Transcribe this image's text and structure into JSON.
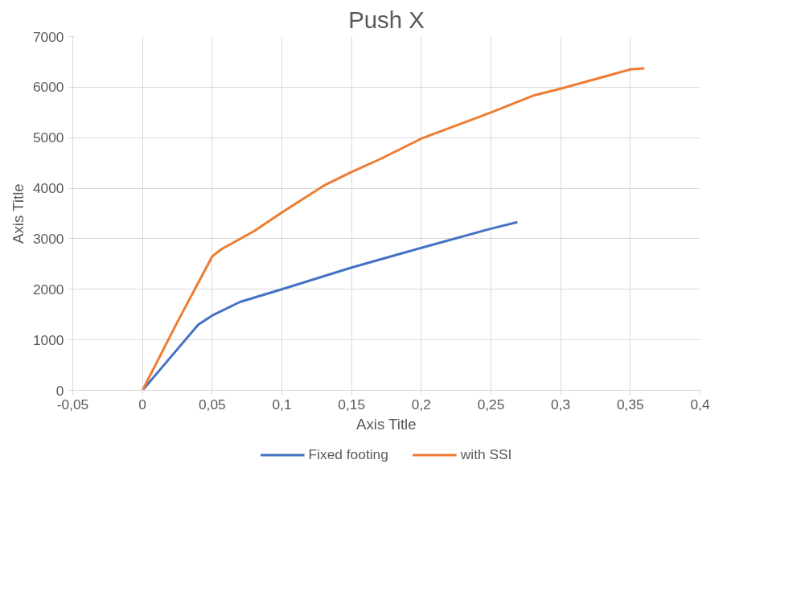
{
  "chart_data": {
    "type": "line",
    "title": "Push X",
    "xlabel": "Axis Title",
    "ylabel": "Axis Title",
    "xlim": [
      -0.05,
      0.4
    ],
    "ylim": [
      0,
      7000
    ],
    "xticks": [
      {
        "value": -0.05,
        "label": "-0,05"
      },
      0,
      {
        "value": 0.05,
        "label": "0,05"
      },
      {
        "value": 0.1,
        "label": "0,1"
      },
      {
        "value": 0.15,
        "label": "0,15"
      },
      {
        "value": 0.2,
        "label": "0,2"
      },
      {
        "value": 0.25,
        "label": "0,25"
      },
      {
        "value": 0.3,
        "label": "0,3"
      },
      {
        "value": 0.35,
        "label": "0,35"
      },
      {
        "value": 0.4,
        "label": "0,4"
      }
    ],
    "yticks": [
      0,
      1000,
      2000,
      3000,
      4000,
      5000,
      6000,
      7000
    ],
    "grid": true,
    "legend": "bottom",
    "line_style": "solid",
    "marker": "none",
    "series": [
      {
        "name": "Fixed footing",
        "color": "#4472c4",
        "x": [
          0,
          0.02,
          0.04,
          0.05,
          0.07,
          0.1,
          0.15,
          0.2,
          0.25,
          0.269
        ],
        "values": [
          0,
          650,
          1300,
          1480,
          1750,
          2000,
          2430,
          2820,
          3200,
          3330
        ]
      },
      {
        "name": "with SSI",
        "color": "#ed7d31",
        "x": [
          0,
          0.025,
          0.05,
          0.055,
          0.057,
          0.08,
          0.1,
          0.13,
          0.15,
          0.17,
          0.2,
          0.25,
          0.28,
          0.3,
          0.32,
          0.35,
          0.36
        ],
        "values": [
          0,
          1350,
          2650,
          2760,
          2800,
          3150,
          3520,
          4050,
          4320,
          4570,
          4980,
          5500,
          5830,
          5970,
          6120,
          6350,
          6370
        ]
      }
    ]
  }
}
